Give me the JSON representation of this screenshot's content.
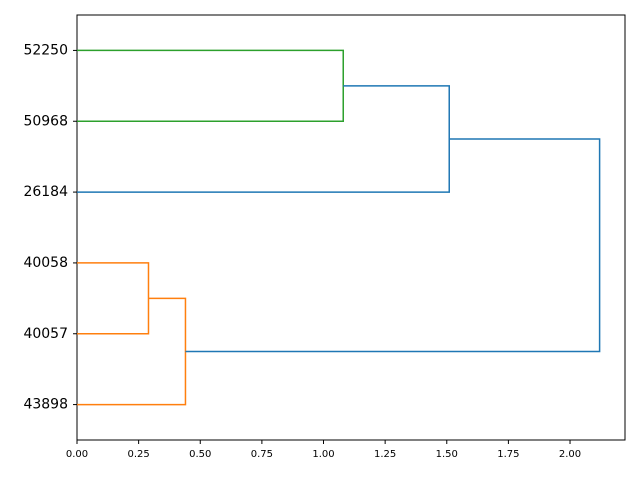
{
  "chart_data": {
    "type": "dendrogram",
    "leaves": [
      "43898",
      "40057",
      "40058",
      "26184",
      "50968",
      "52250"
    ],
    "links": [
      {
        "left": 1,
        "right": 2,
        "height": 0.29,
        "color": "#ff7f0e"
      },
      {
        "left": 0,
        "right": 6,
        "height": 0.44,
        "color": "#ff7f0e"
      },
      {
        "left": 4,
        "right": 5,
        "height": 1.08,
        "color": "#2ca02c"
      },
      {
        "left": 3,
        "right": 8,
        "height": 1.51,
        "color": "#1f77b4"
      },
      {
        "left": 7,
        "right": 9,
        "height": 2.12,
        "color": "#1f77b4"
      }
    ],
    "xlim": [
      0,
      2.223
    ],
    "xticks": [
      {
        "value": 0,
        "label": "0.00"
      },
      {
        "value": 0.25,
        "label": "0.25"
      },
      {
        "value": 0.5,
        "label": "0.50"
      },
      {
        "value": 0.75,
        "label": "0.75"
      },
      {
        "value": 1,
        "label": "1.00"
      },
      {
        "value": 1.25,
        "label": "1.25"
      },
      {
        "value": 1.5,
        "label": "1.50"
      },
      {
        "value": 1.75,
        "label": "1.75"
      },
      {
        "value": 2,
        "label": "2.00"
      }
    ]
  }
}
